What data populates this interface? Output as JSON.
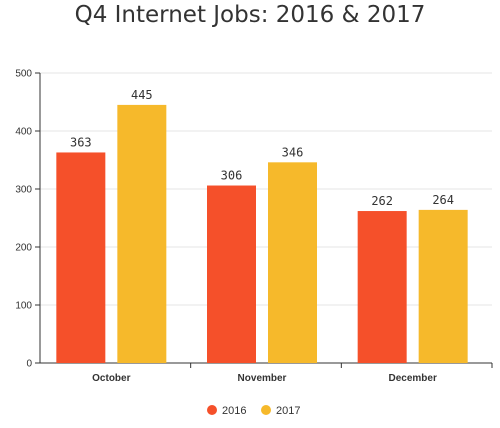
{
  "chart_data": {
    "type": "bar",
    "title": "Q4 Internet Jobs: 2016 & 2017",
    "categories": [
      "October",
      "November",
      "December"
    ],
    "series": [
      {
        "name": "2016",
        "color": "#f5502a",
        "values": [
          363,
          306,
          262
        ]
      },
      {
        "name": "2017",
        "color": "#f6b92b",
        "values": [
          445,
          346,
          264
        ]
      }
    ],
    "ylim": [
      0,
      500
    ],
    "yticks": [
      0,
      100,
      200,
      300,
      400,
      500
    ],
    "grid": true,
    "legend": "bottom-center",
    "data_labels": true
  }
}
